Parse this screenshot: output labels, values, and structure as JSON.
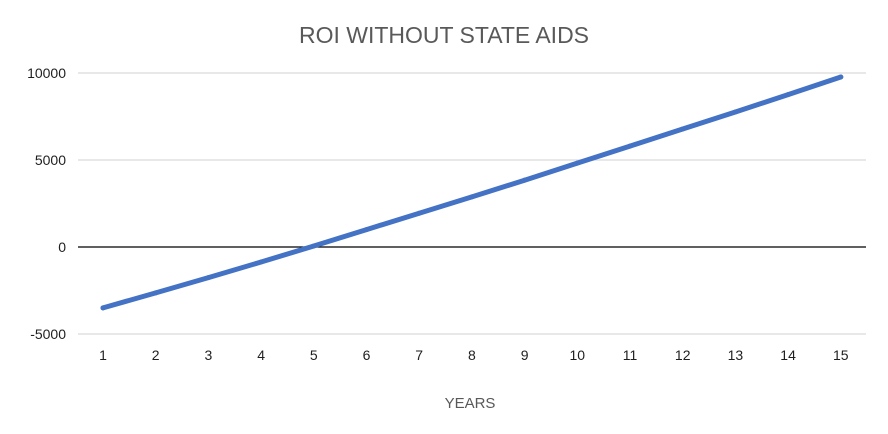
{
  "chart_data": {
    "type": "line",
    "title": "ROI WITHOUT STATE AIDS",
    "xlabel": "YEARS",
    "ylabel": "",
    "x": [
      1,
      2,
      3,
      4,
      5,
      6,
      7,
      8,
      9,
      10,
      11,
      12,
      13,
      14,
      15
    ],
    "x_tick_labels": [
      "1",
      "2",
      "3",
      "4",
      "5",
      "6",
      "7",
      "8",
      "9",
      "10",
      "11",
      "12",
      "13",
      "14",
      "15"
    ],
    "ylim": [
      -5000,
      10000
    ],
    "y_ticks": [
      10000,
      5000,
      0,
      -5000
    ],
    "y_tick_labels": [
      "10000",
      "5000",
      "0",
      "-5000"
    ],
    "grid": true,
    "legend": "none",
    "series": [
      {
        "name": "ROI",
        "color": "#4472C4",
        "values": [
          -3500,
          -2640,
          -1760,
          -860,
          60,
          1000,
          1940,
          2880,
          3840,
          4820,
          5800,
          6780,
          7760,
          8760,
          9770
        ]
      }
    ],
    "colors": {
      "series": "#4472C4",
      "grid": "#d9d9d9",
      "zero_line": "#000000",
      "text": "#595959"
    }
  }
}
